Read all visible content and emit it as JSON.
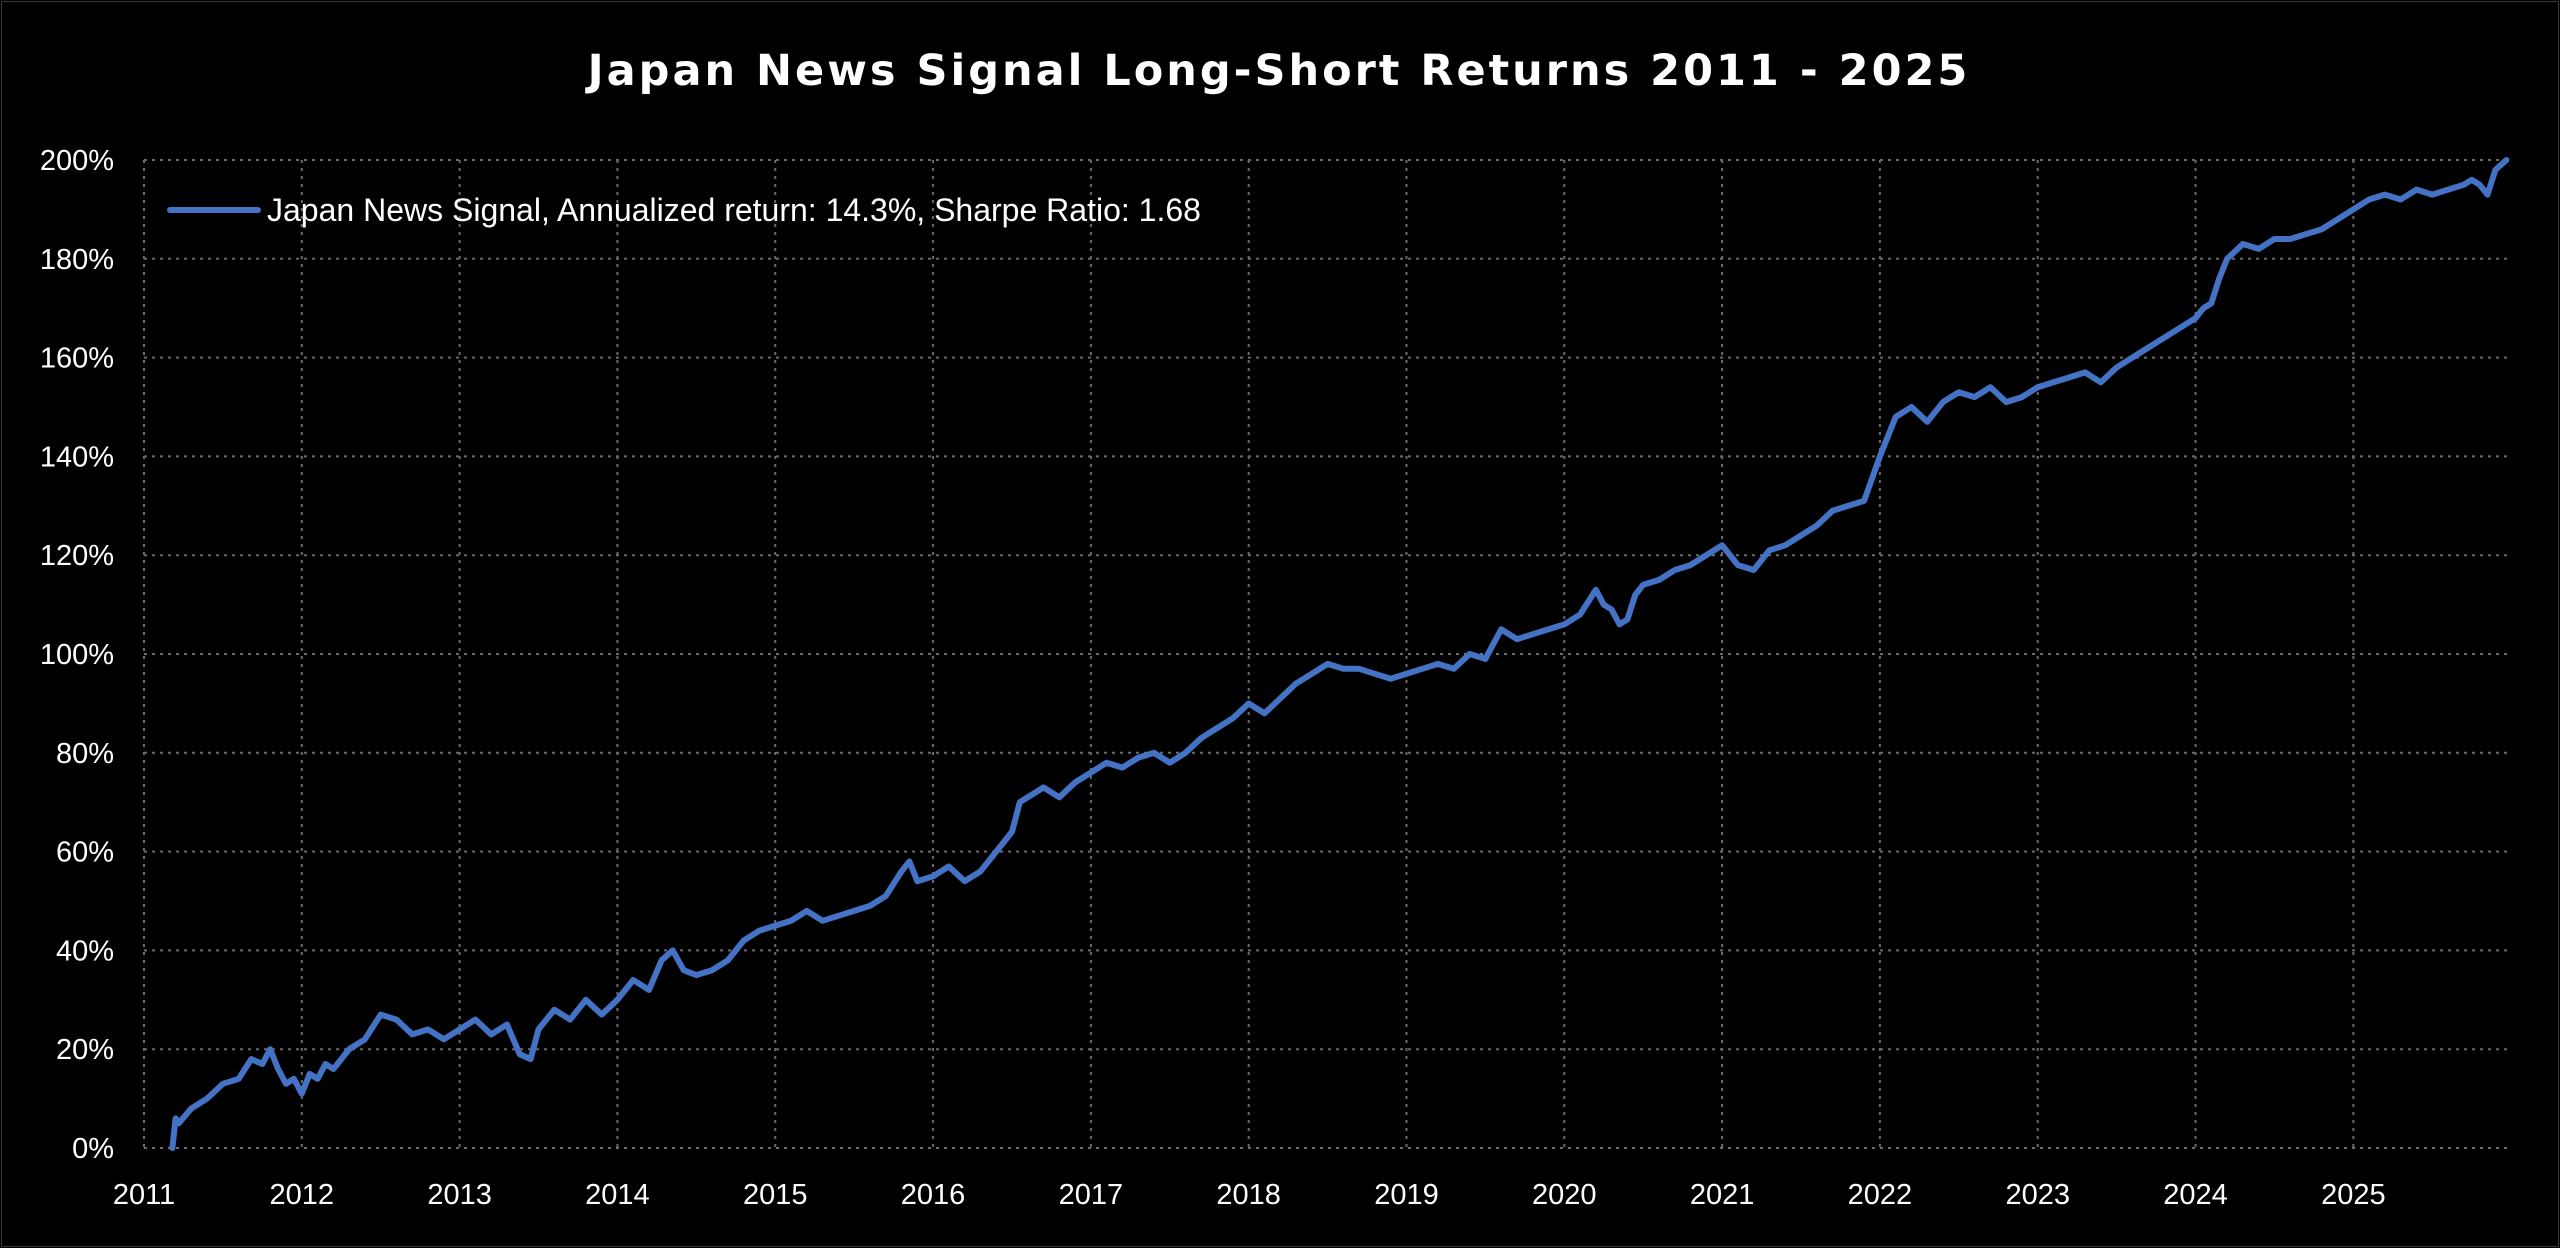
{
  "chart_data": {
    "type": "line",
    "title": "Japan News Signal Long-Short Returns 2011 - 2025",
    "xlabel": "",
    "ylabel": "",
    "xlim": [
      2011,
      2025.98
    ],
    "ylim": [
      0,
      200
    ],
    "x_ticks": [
      2011,
      2012,
      2013,
      2014,
      2015,
      2016,
      2017,
      2018,
      2019,
      2020,
      2021,
      2022,
      2023,
      2024,
      2025
    ],
    "x_tick_labels": [
      "2011",
      "2012",
      "2013",
      "2014",
      "2015",
      "2016",
      "2017",
      "2018",
      "2019",
      "2020",
      "2021",
      "2022",
      "2023",
      "2024",
      "2025"
    ],
    "y_ticks": [
      0,
      20,
      40,
      60,
      80,
      100,
      120,
      140,
      160,
      180,
      200
    ],
    "y_tick_labels": [
      "0%",
      "20%",
      "40%",
      "60%",
      "80%",
      "100%",
      "120%",
      "140%",
      "160%",
      "180%",
      "200%"
    ],
    "grid": true,
    "legend_position": "top-left",
    "series": [
      {
        "name": "Japan News Signal, Annualized return: 14.3%, Sharpe Ratio: 1.68",
        "color": "#4472C4",
        "x": [
          2011.18,
          2011.2,
          2011.22,
          2011.3,
          2011.4,
          2011.5,
          2011.6,
          2011.68,
          2011.75,
          2011.8,
          2011.85,
          2011.9,
          2011.95,
          2012.0,
          2012.05,
          2012.1,
          2012.15,
          2012.2,
          2012.3,
          2012.4,
          2012.5,
          2012.6,
          2012.7,
          2012.8,
          2012.9,
          2013.0,
          2013.1,
          2013.2,
          2013.3,
          2013.38,
          2013.45,
          2013.5,
          2013.6,
          2013.7,
          2013.8,
          2013.9,
          2014.0,
          2014.1,
          2014.2,
          2014.28,
          2014.35,
          2014.42,
          2014.5,
          2014.6,
          2014.7,
          2014.8,
          2014.9,
          2015.0,
          2015.1,
          2015.2,
          2015.3,
          2015.4,
          2015.5,
          2015.6,
          2015.7,
          2015.8,
          2015.85,
          2015.9,
          2016.0,
          2016.1,
          2016.2,
          2016.3,
          2016.4,
          2016.5,
          2016.55,
          2016.6,
          2016.7,
          2016.8,
          2016.9,
          2017.0,
          2017.1,
          2017.2,
          2017.3,
          2017.4,
          2017.5,
          2017.6,
          2017.7,
          2017.8,
          2017.9,
          2018.0,
          2018.1,
          2018.2,
          2018.3,
          2018.4,
          2018.5,
          2018.6,
          2018.7,
          2018.8,
          2018.9,
          2019.0,
          2019.1,
          2019.2,
          2019.3,
          2019.4,
          2019.5,
          2019.6,
          2019.7,
          2019.8,
          2019.9,
          2020.0,
          2020.1,
          2020.2,
          2020.25,
          2020.3,
          2020.35,
          2020.4,
          2020.45,
          2020.5,
          2020.6,
          2020.7,
          2020.8,
          2020.9,
          2021.0,
          2021.1,
          2021.2,
          2021.3,
          2021.4,
          2021.5,
          2021.6,
          2021.7,
          2021.8,
          2021.9,
          2022.0,
          2022.1,
          2022.2,
          2022.3,
          2022.4,
          2022.5,
          2022.6,
          2022.7,
          2022.8,
          2022.9,
          2023.0,
          2023.1,
          2023.2,
          2023.3,
          2023.4,
          2023.5,
          2023.6,
          2023.7,
          2023.8,
          2023.9,
          2024.0,
          2024.05,
          2024.1,
          2024.15,
          2024.2,
          2024.3,
          2024.4,
          2024.5,
          2024.6,
          2024.7,
          2024.8,
          2024.9,
          2025.0,
          2025.1,
          2025.2,
          2025.3,
          2025.4,
          2025.5,
          2025.6,
          2025.7,
          2025.75,
          2025.8,
          2025.85,
          2025.9,
          2025.97
        ],
        "y": [
          0,
          6,
          5,
          8,
          10,
          13,
          14,
          18,
          17,
          20,
          16,
          13,
          14,
          11,
          15,
          14,
          17,
          16,
          20,
          22,
          27,
          26,
          23,
          24,
          22,
          24,
          26,
          23,
          25,
          19,
          18,
          24,
          28,
          26,
          30,
          27,
          30,
          34,
          32,
          38,
          40,
          36,
          35,
          36,
          38,
          42,
          44,
          45,
          46,
          48,
          46,
          47,
          48,
          49,
          51,
          56,
          58,
          54,
          55,
          57,
          54,
          56,
          60,
          64,
          70,
          71,
          73,
          71,
          74,
          76,
          78,
          77,
          79,
          80,
          78,
          80,
          83,
          85,
          87,
          90,
          88,
          91,
          94,
          96,
          98,
          97,
          97,
          96,
          95,
          96,
          97,
          98,
          97,
          100,
          99,
          105,
          103,
          104,
          105,
          106,
          108,
          113,
          110,
          109,
          106,
          107,
          112,
          114,
          115,
          117,
          118,
          120,
          122,
          118,
          117,
          121,
          122,
          124,
          126,
          129,
          130,
          131,
          140,
          148,
          150,
          147,
          151,
          153,
          152,
          154,
          151,
          152,
          154,
          155,
          156,
          157,
          155,
          158,
          160,
          162,
          164,
          166,
          168,
          170,
          171,
          176,
          180,
          183,
          182,
          184,
          184,
          185,
          186,
          188,
          190,
          192,
          193,
          192,
          194,
          193,
          194,
          195,
          196,
          195,
          193,
          198,
          200
        ]
      }
    ]
  }
}
